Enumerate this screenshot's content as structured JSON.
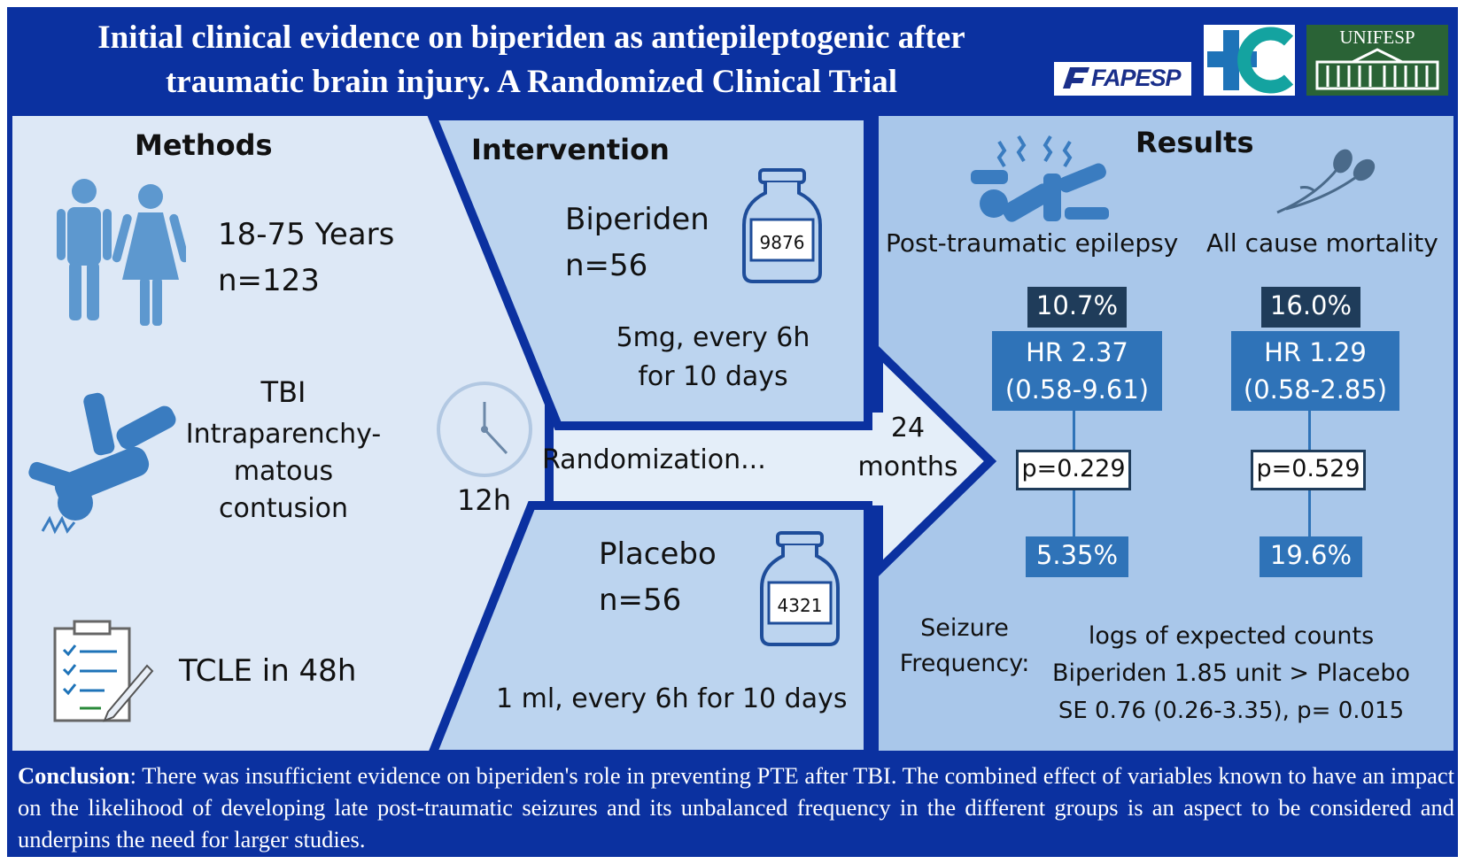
{
  "header": {
    "title_line1": "Initial clinical evidence on biperiden as antiepileptogenic after",
    "title_line2": "traumatic brain injury. A Randomized Clinical Trial",
    "logo_fapesp": "FAPESP",
    "logo_unifesp": "UNIFESP"
  },
  "methods": {
    "heading": "Methods",
    "age": "18-75 Years",
    "n": "n=123",
    "tbi_title": "TBI",
    "tbi_line1": "Intraparenchy-",
    "tbi_line2": "matous",
    "tbi_line3": "contusion",
    "tcle": "TCLE in 48h"
  },
  "flow": {
    "clock_label": "12h",
    "randomization": "Randomization...",
    "months_num": "24",
    "months_label": "months"
  },
  "intervention": {
    "heading": "Intervention",
    "biperiden": {
      "name": "Biperiden",
      "n": "n=56",
      "bottle_label": "9876",
      "dose_line1": "5mg, every 6h",
      "dose_line2": "for 10 days"
    },
    "placebo": {
      "name": "Placebo",
      "n": "n=56",
      "bottle_label": "4321",
      "dose": "1 ml, every 6h for 10 days"
    }
  },
  "results": {
    "heading": "Results",
    "pte": {
      "label": "Post-traumatic epilepsy",
      "top_pct": "10.7%",
      "hr": "HR 2.37",
      "ci": "(0.58-9.61)",
      "p": "p=0.229",
      "bottom_pct": "5.35%"
    },
    "mortality": {
      "label": "All cause mortality",
      "top_pct": "16.0%",
      "hr": "HR 1.29",
      "ci": "(0.58-2.85)",
      "p": "p=0.529",
      "bottom_pct": "19.6%"
    },
    "seizure": {
      "label_line1": "Seizure",
      "label_line2": "Frequency:",
      "line1": "logs of expected counts",
      "line2": "Biperiden 1.85 unit > Placebo",
      "line3": "SE 0.76 (0.26-3.35), p= 0.015"
    }
  },
  "conclusion": {
    "label": "Conclusion",
    "text": ": There was insufficient evidence on biperiden's role in preventing PTE after TBI. The combined effect of variables known to have an impact on the likelihood of developing late post-traumatic seizures and its unbalanced frequency in the different groups is an aspect to be considered and underpins the need for larger studies."
  },
  "colors": {
    "frame": "#0b31a0",
    "methods_bg": "#dde8f6",
    "intervention_bg": "#bcd4ef",
    "results_bg": "#a9c7ea",
    "dark_box": "#1f3c5a",
    "mid_box": "#2f73b8",
    "icon": "#3a7cc0"
  }
}
